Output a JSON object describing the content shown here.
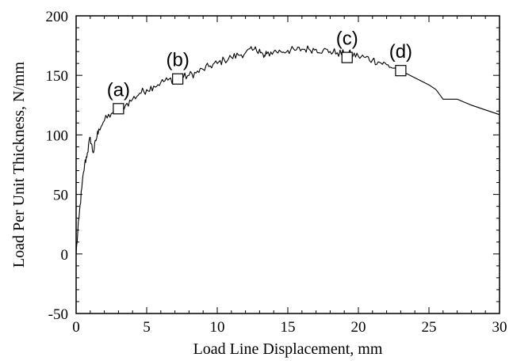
{
  "chart_data": {
    "type": "line",
    "title": "",
    "xlabel": "Load Line Displacement, mm",
    "ylabel": "Load Per Unit Thickness, N/mm",
    "xlim": [
      0,
      30
    ],
    "ylim": [
      -50,
      200
    ],
    "xticks": [
      0,
      5,
      10,
      15,
      20,
      25,
      30
    ],
    "yticks": [
      -50,
      0,
      50,
      100,
      150,
      200
    ],
    "grid": false,
    "legend": "none",
    "line_color": "#000000",
    "series": [
      {
        "x": [
          0,
          0.2,
          0.4,
          0.6,
          0.8,
          1.0,
          1.2,
          1.4,
          1.6,
          2.0,
          2.5,
          3.0,
          3.5,
          4.0,
          4.5,
          5.0,
          5.5,
          6.0,
          6.5,
          7.0,
          7.5,
          8.0,
          8.5,
          9.0,
          9.5,
          10.0,
          10.5,
          11.0,
          11.5,
          12.0,
          12.5,
          13.0,
          13.3,
          13.5,
          14.0,
          14.5,
          15.0,
          15.5,
          16.0,
          16.5,
          17.0,
          17.5,
          18.0,
          18.5,
          19.0,
          19.5,
          20.0,
          20.5,
          21.0,
          21.5,
          22.0,
          22.5,
          23.0,
          23.5,
          24.0,
          24.5,
          25.0,
          25.5,
          26.0,
          27.0,
          28.0,
          29.0,
          30.0
        ],
        "y": [
          0,
          30,
          55,
          75,
          85,
          98,
          85,
          95,
          105,
          112,
          118,
          122,
          125,
          130,
          135,
          138,
          141,
          144,
          146,
          147,
          148,
          150,
          152,
          155,
          158,
          160,
          163,
          165,
          167,
          169,
          171,
          172,
          165,
          168,
          170,
          170,
          171,
          171,
          172,
          172,
          172,
          171,
          170,
          169,
          168,
          168,
          166,
          165,
          163,
          161,
          159,
          156,
          154,
          151,
          148,
          145,
          142,
          138,
          130,
          130,
          125,
          121,
          117
        ]
      }
    ],
    "annotations": [
      {
        "label": "(a)",
        "x": 3.0,
        "y": 122
      },
      {
        "label": "(b)",
        "x": 7.2,
        "y": 147
      },
      {
        "label": "(c)",
        "x": 19.2,
        "y": 165
      },
      {
        "label": "(d)",
        "x": 23.0,
        "y": 154
      }
    ]
  }
}
